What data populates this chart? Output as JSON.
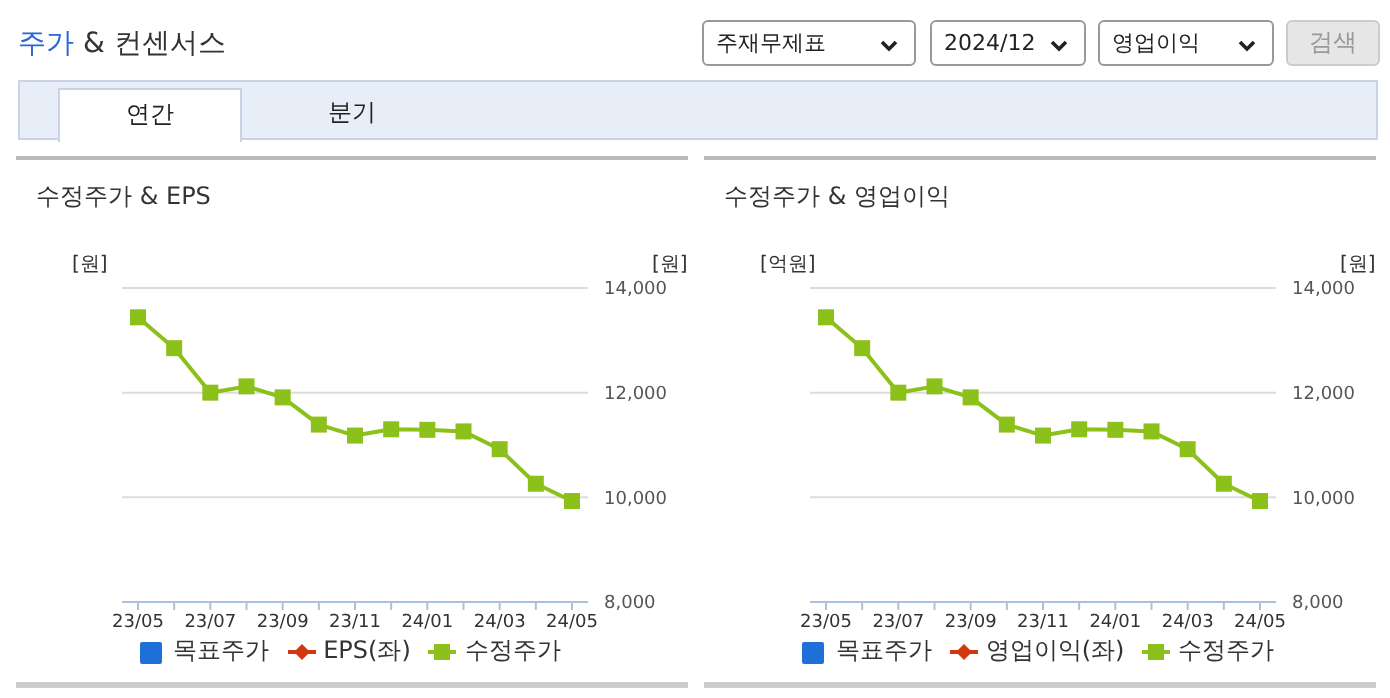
{
  "chart_data": [
    {
      "type": "other",
      "title": "주가 & 컨센서스",
      "annotations": [
        "주재무제표",
        "2024/12",
        "영업이익",
        "검색",
        "연간",
        "분기"
      ]
    },
    {
      "type": "line",
      "title": "수정주가 & EPS",
      "ylabel": "[원]",
      "y2label": "[원]",
      "categories": [
        "23/05",
        null,
        "23/07",
        null,
        "23/09",
        null,
        "23/11",
        null,
        "24/01",
        null,
        "24/03",
        null,
        "24/05"
      ],
      "series": [
        {
          "name": "목표주가",
          "type": "scatter",
          "marker": "square",
          "color": "#1f6fd9",
          "values": [
            null,
            null,
            null,
            null,
            null,
            null,
            null,
            null,
            null,
            null,
            null,
            null,
            null
          ]
        },
        {
          "name": "EPS(좌)",
          "type": "line",
          "marker": "diamond",
          "color": "#d2380f",
          "values": [
            null,
            null,
            null,
            null,
            null,
            null,
            null,
            null,
            null,
            null,
            null,
            null,
            null
          ]
        },
        {
          "name": "수정주가",
          "type": "line",
          "marker": "square",
          "axis": "y2",
          "color": "#8cc11c",
          "values": [
            13440,
            12850,
            12000,
            12120,
            11910,
            11390,
            11180,
            11300,
            11290,
            11260,
            10920,
            10260,
            9930
          ]
        }
      ],
      "y2lim": [
        8000,
        14000
      ],
      "y2ticks": [
        {
          "value": 8000,
          "label": "8,000"
        },
        {
          "value": 10000,
          "label": "10,000"
        },
        {
          "value": 12000,
          "label": "12,000"
        },
        {
          "value": 14000,
          "label": "14,000"
        }
      ],
      "grid": "y",
      "legend": "bottom"
    },
    {
      "type": "line",
      "title": "수정주가 & 영업이익",
      "ylabel": "[억원]",
      "y2label": "[원]",
      "categories": [
        "23/05",
        null,
        "23/07",
        null,
        "23/09",
        null,
        "23/11",
        null,
        "24/01",
        null,
        "24/03",
        null,
        "24/05"
      ],
      "series": [
        {
          "name": "목표주가",
          "type": "scatter",
          "marker": "square",
          "color": "#1f6fd9",
          "values": [
            null,
            null,
            null,
            null,
            null,
            null,
            null,
            null,
            null,
            null,
            null,
            null,
            null
          ]
        },
        {
          "name": "영업이익(좌)",
          "type": "line",
          "marker": "diamond",
          "color": "#d2380f",
          "values": [
            null,
            null,
            null,
            null,
            null,
            null,
            null,
            null,
            null,
            null,
            null,
            null,
            null
          ]
        },
        {
          "name": "수정주가",
          "type": "line",
          "marker": "square",
          "axis": "y2",
          "color": "#8cc11c",
          "values": [
            13440,
            12850,
            12000,
            12120,
            11910,
            11390,
            11180,
            11300,
            11290,
            11260,
            10920,
            10260,
            9930
          ]
        }
      ],
      "y2lim": [
        8000,
        14000
      ],
      "y2ticks": [
        {
          "value": 8000,
          "label": "8,000"
        },
        {
          "value": 10000,
          "label": "10,000"
        },
        {
          "value": 12000,
          "label": "12,000"
        },
        {
          "value": 14000,
          "label": "14,000"
        }
      ],
      "grid": "y",
      "legend": "bottom"
    }
  ]
}
